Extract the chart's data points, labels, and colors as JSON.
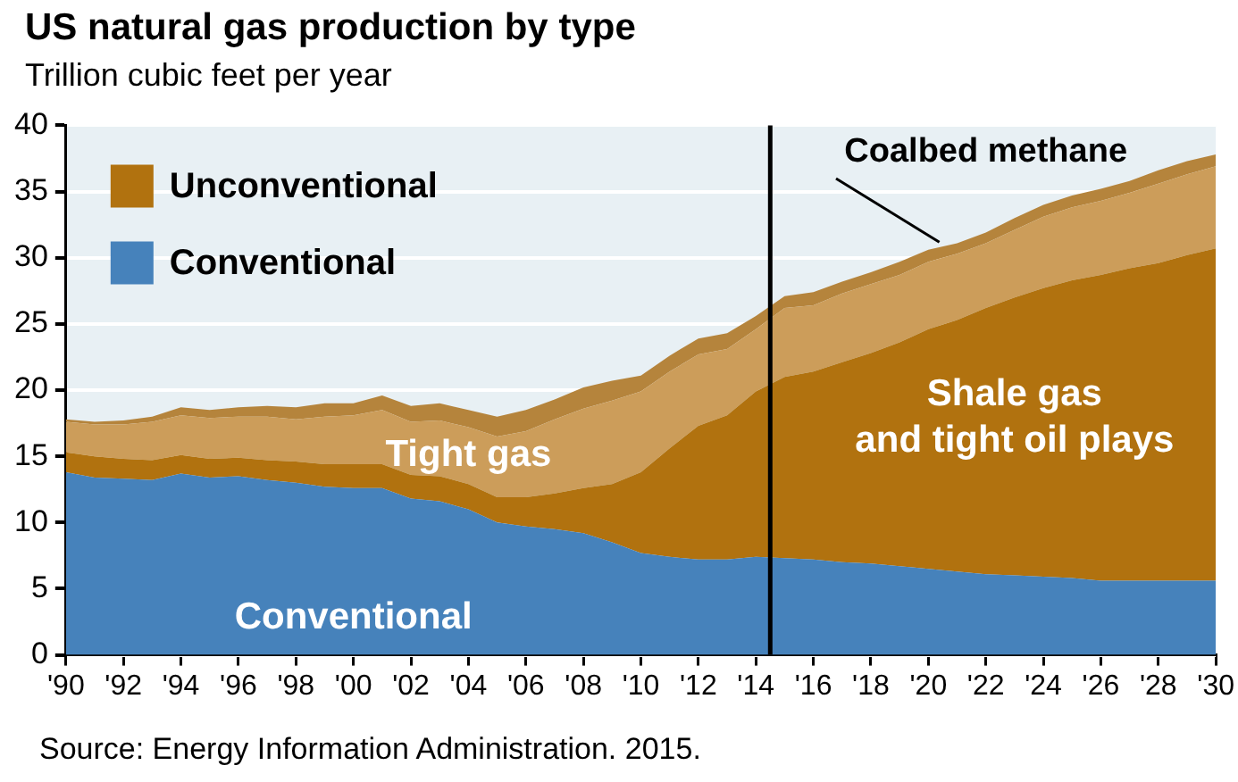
{
  "chart_data": {
    "type": "area",
    "stacked": true,
    "title": "US natural gas production by type",
    "subtitle": "Trillion cubic feet per year",
    "x": [
      1990,
      1991,
      1992,
      1993,
      1994,
      1995,
      1996,
      1997,
      1998,
      1999,
      2000,
      2001,
      2002,
      2003,
      2004,
      2005,
      2006,
      2007,
      2008,
      2009,
      2010,
      2011,
      2012,
      2013,
      2014,
      2015,
      2016,
      2017,
      2018,
      2019,
      2020,
      2021,
      2022,
      2023,
      2024,
      2025,
      2026,
      2027,
      2028,
      2029,
      2030
    ],
    "series": [
      {
        "name": "Conventional",
        "color": "#4682bb",
        "values": [
          13.8,
          13.4,
          13.3,
          13.2,
          13.7,
          13.4,
          13.5,
          13.2,
          13.0,
          12.7,
          12.6,
          12.6,
          11.8,
          11.6,
          11.0,
          10.0,
          9.7,
          9.5,
          9.2,
          8.5,
          7.7,
          7.4,
          7.2,
          7.2,
          7.4,
          7.3,
          7.2,
          7.0,
          6.9,
          6.7,
          6.5,
          6.3,
          6.1,
          6.0,
          5.9,
          5.8,
          5.6,
          5.6,
          5.6,
          5.6,
          5.6
        ]
      },
      {
        "name": "Shale gas and tight oil plays",
        "color": "#b1720f",
        "values": [
          1.5,
          1.6,
          1.5,
          1.5,
          1.4,
          1.4,
          1.4,
          1.5,
          1.6,
          1.7,
          1.8,
          1.8,
          1.8,
          1.9,
          1.9,
          1.9,
          2.2,
          2.7,
          3.4,
          4.4,
          6.1,
          8.2,
          10.1,
          10.9,
          12.5,
          13.7,
          14.2,
          15.1,
          15.9,
          16.9,
          18.1,
          19.0,
          20.1,
          21.0,
          21.8,
          22.5,
          23.1,
          23.6,
          24.0,
          24.6,
          25.1
        ]
      },
      {
        "name": "Tight gas",
        "color": "#cc9d5a",
        "values": [
          2.3,
          2.4,
          2.6,
          2.9,
          3.0,
          3.1,
          3.1,
          3.3,
          3.2,
          3.6,
          3.7,
          4.1,
          4.0,
          4.2,
          4.3,
          4.6,
          5.0,
          5.6,
          6.0,
          6.3,
          6.1,
          5.8,
          5.4,
          5.0,
          4.7,
          5.2,
          5.0,
          5.2,
          5.2,
          5.1,
          5.1,
          5.0,
          4.9,
          5.1,
          5.4,
          5.5,
          5.6,
          5.7,
          6.0,
          6.1,
          6.2
        ]
      },
      {
        "name": "Coalbed methane",
        "color": "#b5843c",
        "values": [
          0.2,
          0.2,
          0.3,
          0.4,
          0.6,
          0.6,
          0.7,
          0.8,
          0.9,
          1.0,
          0.9,
          1.1,
          1.2,
          1.3,
          1.3,
          1.5,
          1.6,
          1.5,
          1.6,
          1.5,
          1.2,
          1.2,
          1.2,
          1.2,
          1.0,
          0.9,
          1.0,
          0.9,
          0.9,
          1.0,
          0.9,
          0.8,
          0.8,
          0.9,
          0.9,
          0.9,
          0.9,
          0.9,
          1.0,
          1.0,
          0.9
        ]
      }
    ],
    "xlim": [
      1990,
      2030
    ],
    "xticks": [
      {
        "value": 1990,
        "label": "'90"
      },
      {
        "value": 1992,
        "label": "'92"
      },
      {
        "value": 1994,
        "label": "'94"
      },
      {
        "value": 1996,
        "label": "'96"
      },
      {
        "value": 1998,
        "label": "'98"
      },
      {
        "value": 2000,
        "label": "'00"
      },
      {
        "value": 2002,
        "label": "'02"
      },
      {
        "value": 2004,
        "label": "'04"
      },
      {
        "value": 2006,
        "label": "'06"
      },
      {
        "value": 2008,
        "label": "'08"
      },
      {
        "value": 2010,
        "label": "'10"
      },
      {
        "value": 2012,
        "label": "'12"
      },
      {
        "value": 2014,
        "label": "'14"
      },
      {
        "value": 2016,
        "label": "'16"
      },
      {
        "value": 2018,
        "label": "'18"
      },
      {
        "value": 2020,
        "label": "'20"
      },
      {
        "value": 2022,
        "label": "'22"
      },
      {
        "value": 2024,
        "label": "'24"
      },
      {
        "value": 2026,
        "label": "'26"
      },
      {
        "value": 2028,
        "label": "'28"
      },
      {
        "value": 2030,
        "label": "'30"
      }
    ],
    "ylim": [
      0,
      40
    ],
    "yticks": [
      0,
      5,
      10,
      15,
      20,
      25,
      30,
      35,
      40
    ],
    "grid": "y",
    "legend": "top left",
    "ref_lines": [
      {
        "axis": "x",
        "value": 2014.5,
        "color": "#000000"
      }
    ],
    "annotations": [
      "Unconventional",
      "Source: Energy Information Administration. 2015."
    ]
  }
}
